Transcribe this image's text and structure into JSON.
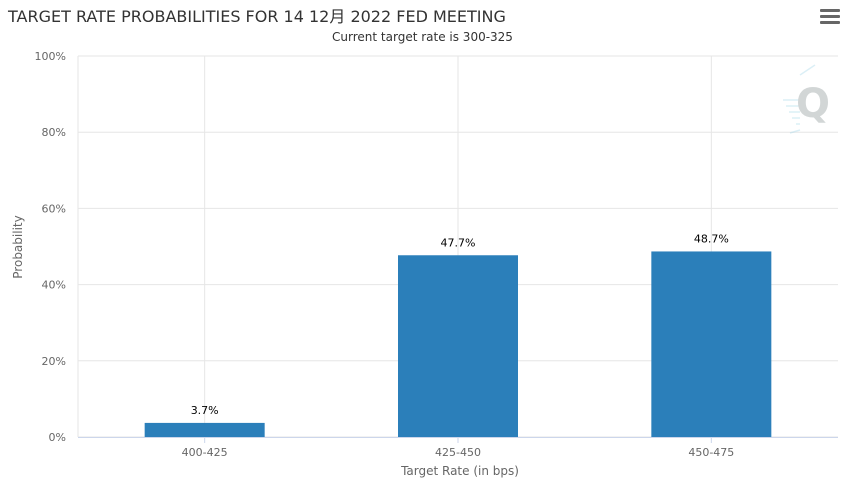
{
  "chart_data": {
    "type": "bar",
    "title": "TARGET RATE PROBABILITIES FOR 14 12月 2022 FED MEETING",
    "subtitle": "Current target rate is 300-325",
    "xlabel": "Target Rate (in bps)",
    "ylabel": "Probability",
    "categories": [
      "400-425",
      "425-450",
      "450-475"
    ],
    "values": [
      3.7,
      47.7,
      48.7
    ],
    "data_labels": [
      "3.7%",
      "47.7%",
      "48.7%"
    ],
    "yticks": [
      0,
      20,
      40,
      60,
      80,
      100
    ],
    "ytick_labels": [
      "0%",
      "20%",
      "40%",
      "60%",
      "80%",
      "100%"
    ],
    "ylim": [
      0,
      100
    ],
    "grid": true,
    "bar_color": "#2b7fba"
  },
  "menu_icon": "hamburger-menu-icon",
  "watermark_icon": "q-logo-watermark-icon"
}
